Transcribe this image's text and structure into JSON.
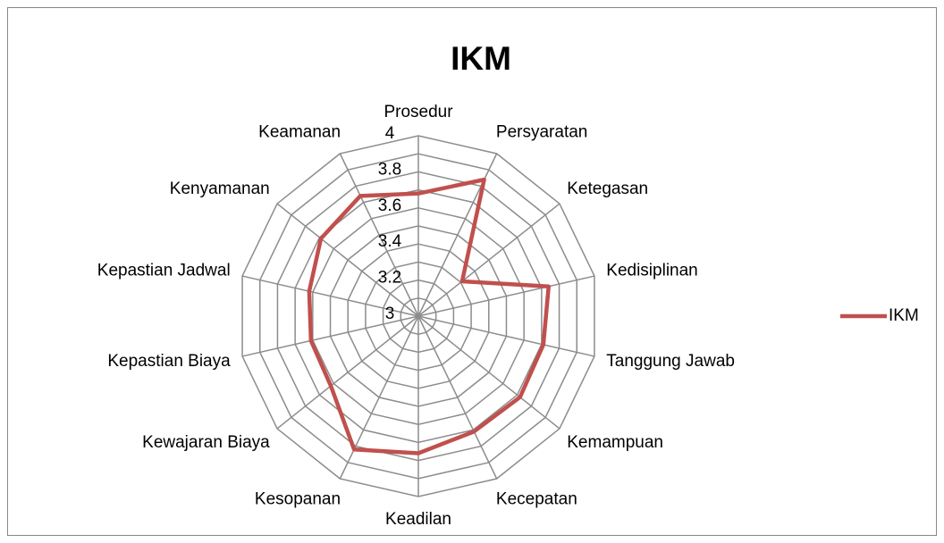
{
  "chart_data": {
    "type": "radar",
    "title": "IKM",
    "categories": [
      "Prosedur",
      "Persyaratan",
      "Ketegasan",
      "Kedisiplinan",
      "Tanggung Jawab",
      "Kemampuan",
      "Kecepatan",
      "Keadilan",
      "Kesopanan",
      "Kewajaran Biaya",
      "Kepastian Biaya",
      "Kepastian Jadwal",
      "Kenyamanan",
      "Keamanan"
    ],
    "series": [
      {
        "name": "IKM",
        "color": "#c0504d",
        "values": [
          3.68,
          3.84,
          3.31,
          3.74,
          3.71,
          3.72,
          3.71,
          3.76,
          3.82,
          3.62,
          3.61,
          3.62,
          3.69,
          3.74
        ]
      }
    ],
    "ylim": [
      3,
      4
    ],
    "yticks": [
      3,
      3.2,
      3.4,
      3.6,
      3.8,
      4
    ],
    "minor_yticks": [
      3.1,
      3.3,
      3.5,
      3.7,
      3.9
    ],
    "grid": true,
    "legend": "right"
  }
}
